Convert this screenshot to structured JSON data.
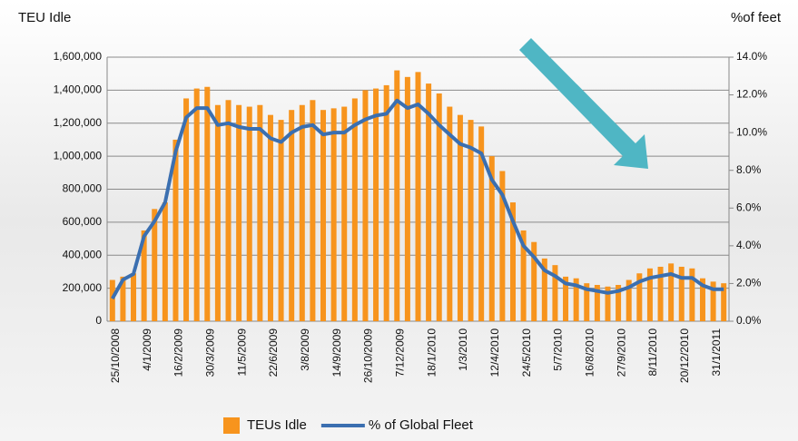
{
  "chart_data": {
    "type": "bar-line",
    "y_axis_title": "TEU Idle",
    "y2_axis_title": "%of feet",
    "categories": [
      "25/10/2008",
      null,
      null,
      "4/1/2009",
      null,
      null,
      "16/2/2009",
      null,
      null,
      "30/3/2009",
      null,
      null,
      "11/5/2009",
      null,
      null,
      "22/6/2009",
      null,
      null,
      "3/8/2009",
      null,
      null,
      "14/9/2009",
      null,
      null,
      "26/10/2009",
      null,
      null,
      "7/12/2009",
      null,
      null,
      "18/1/2010",
      null,
      null,
      "1/3/2010",
      null,
      null,
      "12/4/2010",
      null,
      null,
      "24/5/2010",
      null,
      null,
      "5/7/2010",
      null,
      null,
      "16/8/2010",
      null,
      null,
      "27/9/2010",
      null,
      null,
      "8/11/2010",
      null,
      null,
      "20/12/2010",
      null,
      null,
      "31/1/2011",
      null
    ],
    "series": [
      {
        "name": "TEUs Idle",
        "color": "#f7941d",
        "type": "bar",
        "values": [
          250000,
          270000,
          290000,
          550000,
          680000,
          720000,
          1100000,
          1350000,
          1410000,
          1420000,
          1310000,
          1340000,
          1310000,
          1300000,
          1310000,
          1250000,
          1220000,
          1280000,
          1310000,
          1340000,
          1280000,
          1290000,
          1300000,
          1350000,
          1400000,
          1410000,
          1430000,
          1520000,
          1480000,
          1510000,
          1440000,
          1380000,
          1300000,
          1250000,
          1220000,
          1180000,
          1000000,
          910000,
          720000,
          550000,
          480000,
          380000,
          340000,
          270000,
          260000,
          230000,
          220000,
          210000,
          220000,
          250000,
          290000,
          320000,
          330000,
          350000,
          330000,
          320000,
          260000,
          240000,
          230000
        ]
      },
      {
        "name": "% of Global Fleet",
        "color": "#3b6fb0",
        "type": "line",
        "axis": "y2",
        "values": [
          1.2,
          2.2,
          2.5,
          4.5,
          5.3,
          6.3,
          9.0,
          10.8,
          11.3,
          11.3,
          10.4,
          10.5,
          10.3,
          10.2,
          10.2,
          9.7,
          9.5,
          10.0,
          10.3,
          10.4,
          9.9,
          10.0,
          10.0,
          10.4,
          10.7,
          10.9,
          11.0,
          11.7,
          11.3,
          11.5,
          11.0,
          10.4,
          9.9,
          9.4,
          9.2,
          8.9,
          7.5,
          6.7,
          5.3,
          4.0,
          3.4,
          2.7,
          2.4,
          2.0,
          1.9,
          1.7,
          1.6,
          1.5,
          1.6,
          1.8,
          2.1,
          2.3,
          2.4,
          2.5,
          2.3,
          2.3,
          1.9,
          1.7,
          1.7
        ]
      }
    ],
    "ylim": [
      0,
      1600000
    ],
    "yticks": [
      0,
      {
        "value": 200000,
        "label": "200,000"
      },
      {
        "value": 400000,
        "label": "400,000"
      },
      {
        "value": 600000,
        "label": "600,000"
      },
      {
        "value": 800000,
        "label": "800,000"
      },
      {
        "value": 1000000,
        "label": "1,000,000"
      },
      {
        "value": 1200000,
        "label": "1,200,000"
      },
      {
        "value": 1400000,
        "label": "1,400,000"
      },
      {
        "value": 1600000,
        "label": "1,600,000"
      }
    ],
    "y2lim": [
      0,
      14
    ],
    "y2ticks": [
      {
        "value": 0,
        "label": "0.0%"
      },
      {
        "value": 2,
        "label": "2.0%"
      },
      {
        "value": 4,
        "label": "4.0%"
      },
      {
        "value": 6,
        "label": "6.0%"
      },
      {
        "value": 8,
        "label": "8.0%"
      },
      {
        "value": 10,
        "label": "10.0%"
      },
      {
        "value": 12,
        "label": "12.0%"
      },
      {
        "value": 14,
        "label": "14.0%"
      }
    ],
    "grid": true,
    "legend": "bottom"
  }
}
